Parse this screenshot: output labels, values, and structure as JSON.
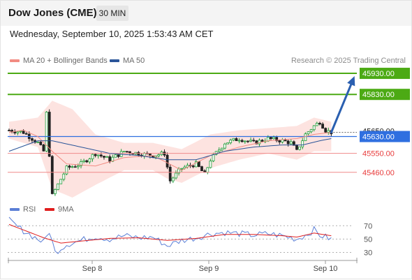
{
  "header": {
    "title": "Dow Jones (CME)",
    "timeframe": "30 MIN"
  },
  "datetime": "Wednesday, September 10, 2025 1:53:43 AM CET",
  "legend_price": [
    {
      "label": "MA 20 + Bollinger Bands",
      "color": "#f28b82"
    },
    {
      "label": "MA 50",
      "color": "#2a5599"
    }
  ],
  "legend_rsi": [
    {
      "label": "RSI",
      "color": "#5b7fd6"
    },
    {
      "label": "9MA",
      "color": "#e01e1e"
    }
  ],
  "credit": "Research © 2025 Trading Central",
  "chart_data": {
    "type": "candlestick",
    "price_levels": [
      {
        "label": "45930.00",
        "value": 45930,
        "color": "#4caa14",
        "kind": "resistance"
      },
      {
        "label": "45830.00",
        "value": 45830,
        "color": "#4caa14",
        "kind": "resistance"
      },
      {
        "label": "45650.00",
        "value": 45650,
        "color": "#1a1a1a",
        "kind": "last price"
      },
      {
        "label": "45630.00",
        "value": 45630,
        "color": "#2f6fe0",
        "kind": "pivot"
      },
      {
        "label": "45550.00",
        "value": 45550,
        "color": "#e83a3a",
        "kind": "support"
      },
      {
        "label": "45460.00",
        "value": 45460,
        "color": "#e83a3a",
        "kind": "support"
      }
    ],
    "x_tick_labels": [
      "Sep 8",
      "Sep 9",
      "Sep 10"
    ],
    "rsi_tick_labels": [
      "70",
      "50",
      "30"
    ],
    "close_waypoints": [
      [
        0,
        45660
      ],
      [
        5,
        45650
      ],
      [
        10,
        45600
      ],
      [
        12,
        45560
      ],
      [
        13,
        45740
      ],
      [
        15,
        45350
      ],
      [
        20,
        45480
      ],
      [
        25,
        45500
      ],
      [
        30,
        45550
      ],
      [
        35,
        45520
      ],
      [
        40,
        45560
      ],
      [
        45,
        45550
      ],
      [
        50,
        45540
      ],
      [
        54,
        45550
      ],
      [
        56,
        45420
      ],
      [
        60,
        45480
      ],
      [
        65,
        45500
      ],
      [
        68,
        45450
      ],
      [
        70,
        45520
      ],
      [
        75,
        45600
      ],
      [
        80,
        45620
      ],
      [
        85,
        45600
      ],
      [
        90,
        45620
      ],
      [
        95,
        45610
      ],
      [
        98,
        45600
      ],
      [
        100,
        45560
      ],
      [
        103,
        45640
      ],
      [
        106,
        45680
      ],
      [
        108,
        45700
      ],
      [
        110,
        45660
      ],
      [
        112,
        45650
      ]
    ],
    "ma20_waypoints": [
      [
        0,
        45650
      ],
      [
        5,
        45660
      ],
      [
        10,
        45630
      ],
      [
        15,
        45560
      ],
      [
        20,
        45500
      ],
      [
        30,
        45490
      ],
      [
        40,
        45530
      ],
      [
        50,
        45540
      ],
      [
        60,
        45470
      ],
      [
        70,
        45540
      ],
      [
        80,
        45580
      ],
      [
        90,
        45610
      ],
      [
        100,
        45620
      ],
      [
        106,
        45640
      ],
      [
        112,
        45650
      ]
    ],
    "ma50_waypoints": [
      [
        0,
        45560
      ],
      [
        10,
        45610
      ],
      [
        15,
        45610
      ],
      [
        25,
        45580
      ],
      [
        35,
        45550
      ],
      [
        45,
        45540
      ],
      [
        55,
        45520
      ],
      [
        65,
        45520
      ],
      [
        75,
        45560
      ],
      [
        85,
        45580
      ],
      [
        95,
        45590
      ],
      [
        102,
        45590
      ],
      [
        108,
        45610
      ],
      [
        112,
        45620
      ]
    ],
    "bollinger_upper_waypoints": [
      [
        0,
        45700
      ],
      [
        10,
        45720
      ],
      [
        15,
        45800
      ],
      [
        22,
        45760
      ],
      [
        30,
        45640
      ],
      [
        40,
        45600
      ],
      [
        50,
        45600
      ],
      [
        60,
        45570
      ],
      [
        70,
        45640
      ],
      [
        80,
        45660
      ],
      [
        90,
        45670
      ],
      [
        100,
        45680
      ],
      [
        106,
        45720
      ],
      [
        112,
        45700
      ]
    ],
    "bollinger_lower_waypoints": [
      [
        0,
        45620
      ],
      [
        10,
        45580
      ],
      [
        15,
        45380
      ],
      [
        22,
        45340
      ],
      [
        30,
        45400
      ],
      [
        40,
        45470
      ],
      [
        50,
        45470
      ],
      [
        55,
        45430
      ],
      [
        60,
        45410
      ],
      [
        70,
        45480
      ],
      [
        80,
        45520
      ],
      [
        90,
        45550
      ],
      [
        100,
        45520
      ],
      [
        106,
        45560
      ],
      [
        112,
        45560
      ]
    ],
    "projection": {
      "from": [
        112,
        45650
      ],
      "to": [
        120,
        45925
      ]
    },
    "rsi_waypoints": [
      [
        0,
        78
      ],
      [
        3,
        68
      ],
      [
        8,
        55
      ],
      [
        12,
        45
      ],
      [
        14,
        62
      ],
      [
        16,
        30
      ],
      [
        20,
        42
      ],
      [
        25,
        48
      ],
      [
        30,
        54
      ],
      [
        35,
        50
      ],
      [
        40,
        55
      ],
      [
        45,
        52
      ],
      [
        50,
        53
      ],
      [
        55,
        40
      ],
      [
        60,
        48
      ],
      [
        65,
        52
      ],
      [
        70,
        58
      ],
      [
        75,
        60
      ],
      [
        80,
        58
      ],
      [
        85,
        56
      ],
      [
        90,
        58
      ],
      [
        95,
        55
      ],
      [
        100,
        50
      ],
      [
        104,
        58
      ],
      [
        106,
        64
      ],
      [
        108,
        56
      ],
      [
        112,
        50
      ]
    ],
    "rsi_ma9_waypoints": [
      [
        0,
        72
      ],
      [
        6,
        62
      ],
      [
        12,
        52
      ],
      [
        18,
        44
      ],
      [
        25,
        47
      ],
      [
        35,
        51
      ],
      [
        45,
        52
      ],
      [
        55,
        48
      ],
      [
        65,
        51
      ],
      [
        75,
        57
      ],
      [
        85,
        57
      ],
      [
        95,
        55
      ],
      [
        100,
        53
      ],
      [
        106,
        59
      ],
      [
        112,
        55
      ]
    ],
    "ylim": [
      45330,
      45960
    ],
    "rsi_ylim": [
      20,
      85
    ],
    "bar_count": 113
  }
}
